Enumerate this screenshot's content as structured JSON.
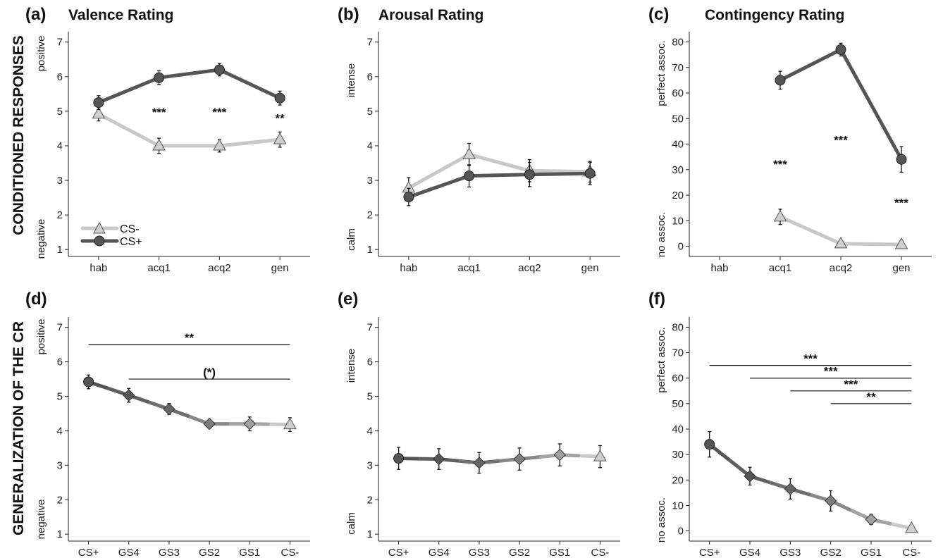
{
  "row_labels": [
    "CONDITIONED RESPONSES",
    "GENERALIZATION OF THE CR"
  ],
  "legend": [
    {
      "label": "CS-",
      "marker": "triangle"
    },
    {
      "label": "CS+",
      "marker": "circle"
    }
  ],
  "colors": {
    "cs_minus": "#c8c8c8",
    "cs_plus": "#555555",
    "gs4": "#5f5f5f",
    "gs3": "#6e6e6e",
    "gs2": "#888888",
    "gs1": "#a3a3a3",
    "axis": "#222222"
  },
  "chart_data": [
    {
      "panel": "(a)",
      "title": "Valence Rating",
      "type": "line",
      "categories": [
        "hab",
        "acq1",
        "acq2",
        "gen"
      ],
      "ylim": [
        0.8,
        7.3
      ],
      "yticks": [
        1,
        2,
        3,
        4,
        5,
        6,
        7
      ],
      "anchors": [
        "positive",
        "negative"
      ],
      "series": [
        {
          "name": "CS-",
          "values": [
            4.92,
            4.0,
            4.0,
            4.18
          ],
          "err": [
            0.2,
            0.22,
            0.18,
            0.22
          ],
          "marker": "triangle"
        },
        {
          "name": "CS+",
          "values": [
            5.25,
            5.97,
            6.2,
            5.38
          ],
          "err": [
            0.2,
            0.2,
            0.18,
            0.2
          ],
          "marker": "circle"
        }
      ],
      "annotations": [
        {
          "text": "***",
          "x": 1,
          "y": 4.85
        },
        {
          "text": "***",
          "x": 2,
          "y": 4.85
        },
        {
          "text": "**",
          "x": 3,
          "y": 4.68
        }
      ]
    },
    {
      "panel": "(b)",
      "title": "Arousal Rating",
      "type": "line",
      "categories": [
        "hab",
        "acq1",
        "acq2",
        "gen"
      ],
      "ylim": [
        0.8,
        7.3
      ],
      "yticks": [
        1,
        2,
        3,
        4,
        5,
        6,
        7
      ],
      "anchors": [
        "intense",
        "calm"
      ],
      "series": [
        {
          "name": "CS-",
          "values": [
            2.78,
            3.75,
            3.28,
            3.25
          ],
          "err": [
            0.3,
            0.32,
            0.32,
            0.3
          ]
        },
        {
          "name": "CS+",
          "values": [
            2.52,
            3.13,
            3.17,
            3.2
          ],
          "err": [
            0.25,
            0.32,
            0.35,
            0.32
          ]
        }
      ],
      "annotations": []
    },
    {
      "panel": "(c)",
      "title": "Contingency Rating",
      "type": "line",
      "categories": [
        "hab",
        "acq1",
        "acq2",
        "gen"
      ],
      "ylim": [
        -4,
        84
      ],
      "yticks": [
        0,
        10,
        20,
        30,
        40,
        50,
        60,
        70,
        80
      ],
      "anchors": [
        "perfect assoc.",
        "no assoc."
      ],
      "series": [
        {
          "name": "CS-",
          "values": [
            null,
            11.5,
            1,
            0.7
          ],
          "err": [
            0,
            3,
            1,
            0.6
          ]
        },
        {
          "name": "CS+",
          "values": [
            null,
            65,
            77,
            34
          ],
          "err": [
            0,
            3.5,
            2.5,
            5
          ]
        }
      ],
      "annotations": [
        {
          "text": "***",
          "x": 1,
          "y": 30.5
        },
        {
          "text": "***",
          "x": 2,
          "y": 40
        },
        {
          "text": "***",
          "x": 3,
          "y": 15.5
        }
      ]
    },
    {
      "panel": "(d)",
      "type": "line",
      "categories": [
        "CS+",
        "GS4",
        "GS3",
        "GS2",
        "GS1",
        "CS-"
      ],
      "ylim": [
        0.8,
        7.3
      ],
      "yticks": [
        1,
        2,
        3,
        4,
        5,
        6,
        7
      ],
      "anchors": [
        "positive",
        "negative"
      ],
      "values": [
        5.42,
        5.03,
        4.63,
        4.2,
        4.2,
        4.18
      ],
      "err": [
        0.2,
        0.2,
        0.16,
        0.08,
        0.2,
        0.2
      ],
      "markers": [
        "circle",
        "diamond",
        "diamond",
        "diamond",
        "diamond",
        "triangle"
      ],
      "brackets": [
        {
          "from": 0,
          "to": 5,
          "y": 6.5,
          "label": "**"
        },
        {
          "from": 1,
          "to": 5,
          "y": 5.5,
          "label": "(*)"
        }
      ]
    },
    {
      "panel": "(e)",
      "type": "line",
      "categories": [
        "CS+",
        "GS4",
        "GS3",
        "GS2",
        "GS1",
        "CS-"
      ],
      "ylim": [
        0.8,
        7.3
      ],
      "yticks": [
        1,
        2,
        3,
        4,
        5,
        6,
        7
      ],
      "anchors": [
        "intense",
        "calm"
      ],
      "values": [
        3.2,
        3.18,
        3.07,
        3.18,
        3.3,
        3.25
      ],
      "err": [
        0.32,
        0.3,
        0.3,
        0.32,
        0.32,
        0.32
      ],
      "markers": [
        "circle",
        "diamond",
        "diamond",
        "diamond",
        "diamond",
        "triangle"
      ],
      "brackets": []
    },
    {
      "panel": "(f)",
      "type": "line",
      "categories": [
        "CS+",
        "GS4",
        "GS3",
        "GS2",
        "GS1",
        "CS-"
      ],
      "ylim": [
        -4,
        84
      ],
      "yticks": [
        0,
        10,
        20,
        30,
        40,
        50,
        60,
        70,
        80
      ],
      "anchors": [
        "perfect assoc.",
        "no assoc."
      ],
      "values": [
        34,
        21.5,
        16.5,
        11.8,
        4.5,
        1
      ],
      "err": [
        5,
        3.5,
        4,
        4,
        2,
        0.8
      ],
      "markers": [
        "circle",
        "diamond",
        "diamond",
        "diamond",
        "diamond",
        "triangle"
      ],
      "brackets": [
        {
          "from": 0,
          "to": 5,
          "y": 65,
          "label": "***"
        },
        {
          "from": 1,
          "to": 5,
          "y": 60,
          "label": "***"
        },
        {
          "from": 2,
          "to": 5,
          "y": 55,
          "label": "***"
        },
        {
          "from": 3,
          "to": 5,
          "y": 50,
          "label": "**"
        }
      ]
    }
  ]
}
